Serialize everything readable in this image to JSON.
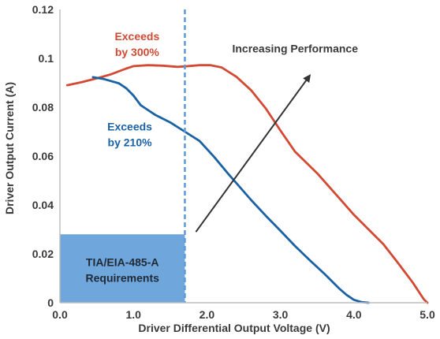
{
  "chart_data": {
    "type": "line",
    "xlabel": "Driver Differential Output Voltage (V)",
    "ylabel": "Driver Output Current (A)",
    "xlim": [
      0,
      5
    ],
    "ylim": [
      0,
      0.12
    ],
    "x_ticks": [
      "0.0",
      "1.0",
      "2.0",
      "3.0",
      "4.0",
      "5.0"
    ],
    "y_ticks": [
      "0",
      "0.02",
      "0.04",
      "0.06",
      "0.08",
      "0.1",
      "0.12"
    ],
    "grid": false,
    "series": [
      {
        "color": "#d24a34",
        "points": [
          [
            0.1,
            0.089
          ],
          [
            0.3,
            0.0903
          ],
          [
            0.5,
            0.0918
          ],
          [
            0.7,
            0.0935
          ],
          [
            0.9,
            0.0958
          ],
          [
            1.0,
            0.0968
          ],
          [
            1.2,
            0.0972
          ],
          [
            1.4,
            0.097
          ],
          [
            1.6,
            0.0965
          ],
          [
            1.7,
            0.0967
          ],
          [
            1.9,
            0.0972
          ],
          [
            2.05,
            0.0972
          ],
          [
            2.2,
            0.0963
          ],
          [
            2.4,
            0.0925
          ],
          [
            2.6,
            0.087
          ],
          [
            2.8,
            0.0795
          ],
          [
            3.0,
            0.0705
          ],
          [
            3.2,
            0.0618
          ],
          [
            3.5,
            0.053
          ],
          [
            3.8,
            0.0428
          ],
          [
            4.0,
            0.036
          ],
          [
            4.2,
            0.03
          ],
          [
            4.4,
            0.024
          ],
          [
            4.6,
            0.0163
          ],
          [
            4.8,
            0.0083
          ],
          [
            4.95,
            0.0015
          ],
          [
            5.0,
            0.0
          ]
        ]
      },
      {
        "color": "#1a62a4",
        "points": [
          [
            0.45,
            0.0923
          ],
          [
            0.6,
            0.0915
          ],
          [
            0.8,
            0.0898
          ],
          [
            0.9,
            0.0878
          ],
          [
            1.0,
            0.0848
          ],
          [
            1.1,
            0.0808
          ],
          [
            1.3,
            0.0768
          ],
          [
            1.5,
            0.0738
          ],
          [
            1.7,
            0.07
          ],
          [
            1.9,
            0.0662
          ],
          [
            2.1,
            0.0596
          ],
          [
            2.3,
            0.0524
          ],
          [
            2.6,
            0.0421
          ],
          [
            2.8,
            0.0356
          ],
          [
            3.0,
            0.0295
          ],
          [
            3.2,
            0.0232
          ],
          [
            3.4,
            0.0174
          ],
          [
            3.6,
            0.0118
          ],
          [
            3.8,
            0.0058
          ],
          [
            3.9,
            0.0032
          ],
          [
            4.0,
            0.0012
          ],
          [
            4.1,
            0.0003
          ],
          [
            4.2,
            0.0
          ]
        ]
      }
    ],
    "requirement_box": {
      "x": [
        0,
        1.7
      ],
      "y": [
        0,
        0.028
      ],
      "color": "#6fa6dc",
      "label_lines": [
        "TIA/EIA-485-A",
        "Requirements"
      ]
    },
    "threshold_line": {
      "x": 1.7,
      "color": "#5a9bd8"
    },
    "arrow": {
      "from": [
        1.85,
        0.029
      ],
      "to": [
        3.4,
        0.093
      ],
      "color": "#333333"
    },
    "annotations": [
      {
        "lines": [
          "Exceeds",
          "by 300%"
        ],
        "color": "#d24a34",
        "at": [
          1.05,
          0.1075
        ]
      },
      {
        "lines": [
          "Exceeds",
          "by 210%"
        ],
        "color": "#1a62a4",
        "at": [
          0.95,
          0.0705
        ]
      },
      {
        "lines": [
          "Increasing Performance"
        ],
        "color": "#3a3a3a",
        "at": [
          3.2,
          0.1025
        ]
      }
    ]
  }
}
